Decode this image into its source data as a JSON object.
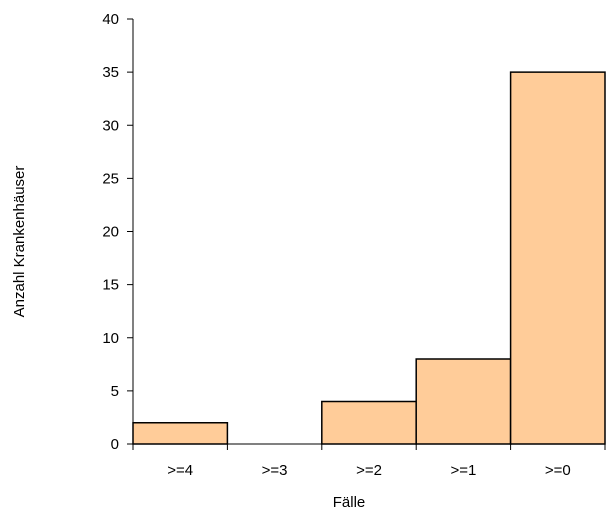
{
  "chart_data": {
    "type": "bar",
    "title": "",
    "xlabel": "Fälle",
    "ylabel": "Anzahl Krankenhäuser",
    "categories": [
      ">=4",
      ">=3",
      ">=2",
      ">=1",
      ">=0"
    ],
    "values": [
      2,
      0,
      4,
      8,
      35
    ],
    "ylim": [
      0,
      40
    ],
    "yticks": [
      0,
      5,
      10,
      15,
      20,
      25,
      30,
      35,
      40
    ],
    "bar_color": "#FFCC99",
    "bar_edge_color": "#000000",
    "grid": false,
    "legend": "none"
  }
}
